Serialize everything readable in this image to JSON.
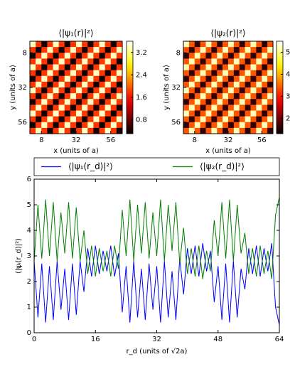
{
  "chart_data": [
    {
      "type": "heatmap",
      "title": "⟨|ψ₁(r)|²⟩",
      "xlabel": "x (units of a)",
      "ylabel": "y (units of a)",
      "xlim": [
        0,
        64
      ],
      "ylim": [
        64,
        0
      ],
      "xticks": [
        8,
        32,
        56
      ],
      "yticks": [
        8,
        32,
        56
      ],
      "colormap": "hot",
      "clim": [
        0.3,
        3.6
      ],
      "cticks": [
        0.8,
        1.6,
        2.4,
        3.2
      ],
      "values": [
        [
          3.4,
          1.8,
          0.4,
          1.8,
          3.4,
          1.8,
          0.4,
          1.8,
          3.4,
          1.8,
          0.4,
          1.8,
          3.4,
          1.8,
          0.4,
          1.8
        ],
        [
          1.8,
          0.4,
          1.8,
          3.4,
          1.8,
          0.4,
          1.8,
          3.4,
          1.8,
          0.4,
          1.8,
          3.4,
          1.8,
          0.4,
          1.8,
          3.4
        ],
        [
          0.4,
          1.8,
          3.4,
          1.8,
          0.4,
          1.8,
          3.4,
          1.8,
          0.4,
          1.8,
          3.4,
          1.8,
          0.4,
          1.8,
          3.4,
          1.8
        ],
        [
          1.8,
          3.4,
          1.8,
          0.4,
          1.8,
          3.4,
          1.8,
          0.4,
          1.8,
          3.4,
          1.8,
          0.4,
          1.8,
          3.4,
          1.8,
          0.4
        ],
        [
          3.4,
          1.8,
          0.4,
          1.8,
          3.4,
          1.8,
          0.4,
          1.8,
          3.4,
          1.8,
          0.4,
          1.8,
          3.4,
          1.8,
          0.4,
          1.8
        ],
        [
          1.8,
          0.4,
          1.8,
          3.4,
          1.8,
          0.4,
          1.8,
          3.4,
          1.8,
          0.4,
          1.8,
          3.4,
          1.8,
          0.4,
          1.8,
          3.4
        ],
        [
          0.4,
          1.8,
          3.4,
          1.8,
          0.4,
          1.8,
          3.4,
          1.8,
          0.4,
          1.8,
          3.4,
          1.8,
          0.4,
          1.8,
          3.4,
          1.8
        ],
        [
          1.8,
          3.4,
          1.8,
          0.4,
          1.8,
          3.4,
          1.8,
          0.4,
          1.8,
          3.4,
          1.8,
          0.4,
          1.8,
          3.4,
          1.8,
          0.4
        ],
        [
          3.4,
          1.8,
          0.4,
          1.8,
          3.4,
          1.8,
          0.4,
          1.8,
          3.4,
          1.8,
          0.4,
          1.8,
          3.4,
          1.8,
          0.4,
          1.8
        ],
        [
          1.8,
          0.4,
          1.8,
          3.4,
          1.8,
          0.4,
          1.8,
          3.4,
          1.8,
          0.4,
          1.8,
          3.4,
          1.8,
          0.4,
          1.8,
          3.4
        ],
        [
          0.4,
          1.8,
          3.4,
          1.8,
          0.4,
          1.8,
          3.4,
          1.8,
          0.4,
          1.8,
          3.4,
          1.8,
          0.4,
          1.8,
          3.4,
          1.8
        ],
        [
          1.8,
          3.4,
          1.8,
          0.4,
          1.8,
          3.4,
          1.8,
          0.4,
          1.8,
          3.4,
          1.8,
          0.4,
          1.8,
          3.4,
          1.8,
          0.4
        ],
        [
          3.4,
          1.8,
          0.4,
          1.8,
          3.4,
          1.8,
          0.4,
          1.8,
          3.4,
          1.8,
          0.4,
          1.8,
          3.4,
          1.8,
          0.4,
          1.8
        ],
        [
          1.8,
          0.4,
          1.8,
          3.4,
          1.8,
          0.4,
          1.8,
          3.4,
          1.8,
          0.4,
          1.8,
          3.4,
          1.8,
          0.4,
          1.8,
          3.4
        ],
        [
          0.4,
          1.8,
          3.4,
          1.8,
          0.4,
          1.8,
          3.4,
          1.8,
          0.4,
          1.8,
          3.4,
          1.8,
          0.4,
          1.8,
          3.4,
          1.8
        ],
        [
          1.8,
          3.4,
          1.8,
          0.4,
          1.8,
          3.4,
          1.8,
          0.4,
          1.8,
          3.4,
          1.8,
          0.4,
          1.8,
          3.4,
          1.8,
          0.4
        ]
      ]
    },
    {
      "type": "heatmap",
      "title": "⟨|ψ₂(r)|²⟩",
      "xlabel": "x (units of a)",
      "ylabel": "y (units of a)",
      "xlim": [
        0,
        64
      ],
      "ylim": [
        64,
        0
      ],
      "xticks": [
        8,
        32,
        56
      ],
      "yticks": [
        8,
        32,
        56
      ],
      "colormap": "hot",
      "clim": [
        1.3,
        5.5
      ],
      "cticks": [
        2,
        3,
        4,
        5
      ],
      "values": [
        [
          5.2,
          3.4,
          1.6,
          3.4,
          5.2,
          3.4,
          1.6,
          3.4,
          5.2,
          3.4,
          1.6,
          3.4,
          5.2,
          3.4,
          1.6,
          3.4
        ],
        [
          3.4,
          1.6,
          3.4,
          5.2,
          3.4,
          1.6,
          3.4,
          5.2,
          3.4,
          1.6,
          3.4,
          5.2,
          3.4,
          1.6,
          3.4,
          5.2
        ],
        [
          1.6,
          3.4,
          5.2,
          3.4,
          1.6,
          3.4,
          5.2,
          3.4,
          1.6,
          3.4,
          5.2,
          3.4,
          1.6,
          3.4,
          5.2,
          3.4
        ],
        [
          3.4,
          5.2,
          3.4,
          1.6,
          3.4,
          5.2,
          3.4,
          1.6,
          3.4,
          5.2,
          3.4,
          1.6,
          3.4,
          5.2,
          3.4,
          1.6
        ],
        [
          5.2,
          3.4,
          1.6,
          3.4,
          5.2,
          3.4,
          1.6,
          3.4,
          5.2,
          3.4,
          1.6,
          3.4,
          5.2,
          3.4,
          1.6,
          3.4
        ],
        [
          3.4,
          1.6,
          3.4,
          5.2,
          3.4,
          1.6,
          3.4,
          5.2,
          3.4,
          1.6,
          3.4,
          5.2,
          3.4,
          1.6,
          3.4,
          5.2
        ],
        [
          1.6,
          3.4,
          5.2,
          3.4,
          1.6,
          3.4,
          5.2,
          3.4,
          1.6,
          3.4,
          5.2,
          3.4,
          1.6,
          3.4,
          5.2,
          3.4
        ],
        [
          3.4,
          5.2,
          3.4,
          1.6,
          3.4,
          5.2,
          3.4,
          1.6,
          3.4,
          5.2,
          3.4,
          1.6,
          3.4,
          5.2,
          3.4,
          1.6
        ],
        [
          5.2,
          3.4,
          1.6,
          3.4,
          5.2,
          3.4,
          1.6,
          3.4,
          5.2,
          3.4,
          1.6,
          3.4,
          5.2,
          3.4,
          1.6,
          3.4
        ],
        [
          3.4,
          1.6,
          3.4,
          5.2,
          3.4,
          1.6,
          3.4,
          5.2,
          3.4,
          1.6,
          3.4,
          5.2,
          3.4,
          1.6,
          3.4,
          5.2
        ],
        [
          1.6,
          3.4,
          5.2,
          3.4,
          1.6,
          3.4,
          5.2,
          3.4,
          1.6,
          3.4,
          5.2,
          3.4,
          1.6,
          3.4,
          5.2,
          3.4
        ],
        [
          3.4,
          5.2,
          3.4,
          1.6,
          3.4,
          5.2,
          3.4,
          1.6,
          3.4,
          5.2,
          3.4,
          1.6,
          3.4,
          5.2,
          3.4,
          1.6
        ],
        [
          5.2,
          3.4,
          1.6,
          3.4,
          5.2,
          3.4,
          1.6,
          3.4,
          5.2,
          3.4,
          1.6,
          3.4,
          5.2,
          3.4,
          1.6,
          3.4
        ],
        [
          3.4,
          1.6,
          3.4,
          5.2,
          3.4,
          1.6,
          3.4,
          5.2,
          3.4,
          1.6,
          3.4,
          5.2,
          3.4,
          1.6,
          3.4,
          5.2
        ],
        [
          1.6,
          3.4,
          5.2,
          3.4,
          1.6,
          3.4,
          5.2,
          3.4,
          1.6,
          3.4,
          5.2,
          3.4,
          1.6,
          3.4,
          5.2,
          3.4
        ],
        [
          3.4,
          5.2,
          3.4,
          1.6,
          3.4,
          5.2,
          3.4,
          1.6,
          3.4,
          5.2,
          3.4,
          1.6,
          3.4,
          5.2,
          3.4,
          1.6
        ]
      ]
    },
    {
      "type": "line",
      "xlabel": "r_d (units of √2a)",
      "ylabel": "⟨|ψᵢ(r_d)|²⟩",
      "xlim": [
        0,
        64
      ],
      "ylim": [
        0,
        6
      ],
      "xticks": [
        0,
        16,
        32,
        48,
        64
      ],
      "yticks": [
        0,
        1,
        2,
        3,
        4,
        5,
        6
      ],
      "legend": "top",
      "x": [
        0,
        1,
        2,
        3,
        4,
        5,
        6,
        7,
        8,
        9,
        10,
        11,
        12,
        13,
        14,
        15,
        16,
        17,
        18,
        19,
        20,
        21,
        22,
        23,
        24,
        25,
        26,
        27,
        28,
        29,
        30,
        31,
        32,
        33,
        34,
        35,
        36,
        37,
        38,
        39,
        40,
        41,
        42,
        43,
        44,
        45,
        46,
        47,
        48,
        49,
        50,
        51,
        52,
        53,
        54,
        55,
        56,
        57,
        58,
        59,
        60,
        61,
        62,
        63,
        64
      ],
      "series": [
        {
          "name": "⟨|ψ₁(r_d)|²⟩",
          "color": "#0000ff",
          "values": [
            2.8,
            0.6,
            2.7,
            0.4,
            2.6,
            0.5,
            2.8,
            0.9,
            2.5,
            0.5,
            2.7,
            0.7,
            2.8,
            1.6,
            3.3,
            2.2,
            3.4,
            2.3,
            3.2,
            2.4,
            3.4,
            2.2,
            3.1,
            0.8,
            2.6,
            0.4,
            2.8,
            0.6,
            2.5,
            0.5,
            2.7,
            0.9,
            2.6,
            0.4,
            2.8,
            0.6,
            2.4,
            0.5,
            2.9,
            1.5,
            3.3,
            2.3,
            3.4,
            2.2,
            3.5,
            2.4,
            3.2,
            1.2,
            2.6,
            0.5,
            2.7,
            0.4,
            2.8,
            0.6,
            2.5,
            1.7,
            3.3,
            2.3,
            3.4,
            2.2,
            3.3,
            2.4,
            3.5,
            1.0,
            0.3
          ]
        },
        {
          "name": "⟨|ψ₂(r_d)|²⟩",
          "color": "#008000",
          "values": [
            2.8,
            5.0,
            2.9,
            5.2,
            3.0,
            5.1,
            2.8,
            4.7,
            3.1,
            5.1,
            2.9,
            4.9,
            2.8,
            4.0,
            2.3,
            3.4,
            2.2,
            3.3,
            2.4,
            3.2,
            2.2,
            3.4,
            2.5,
            4.8,
            3.0,
            5.2,
            2.8,
            5.0,
            3.1,
            5.1,
            2.9,
            4.7,
            3.0,
            5.2,
            2.8,
            5.0,
            3.2,
            5.1,
            2.7,
            4.1,
            2.3,
            3.3,
            2.2,
            3.4,
            2.1,
            3.2,
            2.4,
            4.4,
            3.0,
            5.1,
            2.9,
            5.2,
            2.8,
            5.0,
            3.1,
            3.9,
            2.3,
            3.3,
            2.2,
            3.4,
            2.3,
            3.2,
            2.1,
            4.6,
            5.3
          ]
        }
      ]
    }
  ]
}
